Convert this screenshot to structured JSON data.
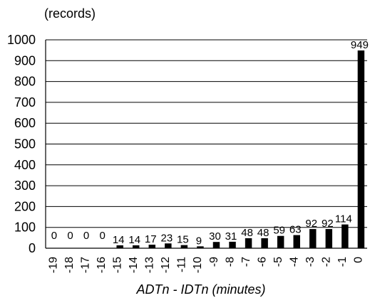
{
  "chart_data": {
    "type": "bar",
    "title": "",
    "ylabel": "(records)",
    "xlabel": "ADTn - IDTn (minutes)",
    "ylim": [
      0,
      1000
    ],
    "yticks": [
      0,
      100,
      200,
      300,
      400,
      500,
      600,
      700,
      800,
      900,
      1000
    ],
    "grid": true,
    "legend": "none",
    "bar_color": "#000000",
    "categories": [
      "-19",
      "-18",
      "-17",
      "-16",
      "-15",
      "-14",
      "-13",
      "-12",
      "-11",
      "-10",
      "-9",
      "-8",
      "-7",
      "-6",
      "-5",
      "-4",
      "-3",
      "-2",
      "-1",
      "0"
    ],
    "values": [
      0,
      0,
      0,
      0,
      14,
      14,
      17,
      23,
      15,
      9,
      30,
      31,
      48,
      48,
      59,
      63,
      92,
      92,
      114,
      949
    ],
    "data_labels": [
      "0",
      "0",
      "0",
      "0",
      "14",
      "14",
      "17",
      "23",
      "15",
      "9",
      "30",
      "31",
      "48",
      "48",
      "59",
      "63",
      "92",
      "92",
      "114",
      "949"
    ]
  }
}
